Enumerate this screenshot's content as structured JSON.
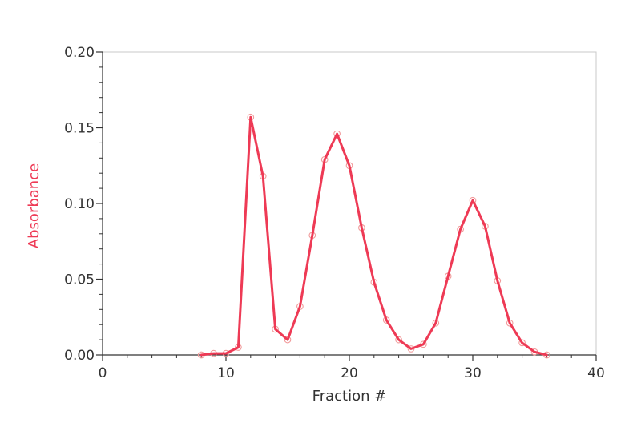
{
  "chart_data": {
    "type": "line",
    "title": "",
    "xlabel": "Fraction #",
    "ylabel": "Absorbance",
    "xlim": [
      0,
      40
    ],
    "ylim": [
      0,
      0.2
    ],
    "x_ticks": [
      "0",
      "10",
      "20",
      "30",
      "40"
    ],
    "y_ticks": [
      "0.00",
      "0.05",
      "0.10",
      "0.15",
      "0.20"
    ],
    "grid": false,
    "line_color": "#ee3a55",
    "marker_color": "#f19a9a",
    "ylabel_color": "#ee3a55",
    "series": [
      {
        "x": [
          8,
          9,
          10,
          11,
          12,
          13,
          14,
          15,
          16,
          17,
          18,
          19,
          20,
          21,
          22,
          23,
          24,
          25,
          26,
          27,
          28,
          29,
          30,
          31,
          32,
          33,
          34,
          35,
          36
        ],
        "values": [
          0.0,
          0.001,
          0.001,
          0.005,
          0.157,
          0.118,
          0.017,
          0.01,
          0.032,
          0.079,
          0.129,
          0.146,
          0.125,
          0.084,
          0.048,
          0.023,
          0.01,
          0.004,
          0.007,
          0.021,
          0.052,
          0.083,
          0.102,
          0.085,
          0.049,
          0.021,
          0.008,
          0.002,
          0.0
        ]
      }
    ]
  }
}
